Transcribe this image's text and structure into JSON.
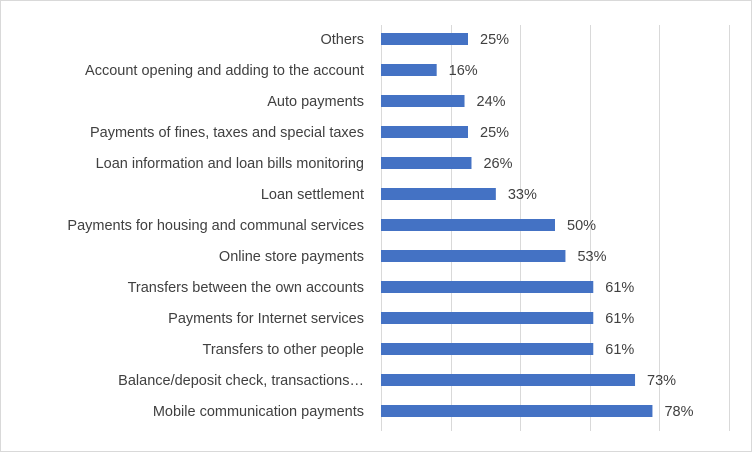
{
  "chart_data": {
    "type": "bar",
    "orientation": "horizontal",
    "categories": [
      "Others",
      "Account opening and adding to the account",
      "Auto payments",
      "Payments of fines, taxes and special taxes",
      "Loan information and loan bills monitoring",
      "Loan settlement",
      "Payments for housing and communal services",
      "Online store payments ",
      "Transfers between the own accounts",
      "Payments for Internet services",
      "Transfers to other people",
      "Balance/deposit check, transactions…",
      "Mobile communication payments "
    ],
    "values": [
      25,
      16,
      24,
      25,
      26,
      33,
      50,
      53,
      61,
      61,
      61,
      73,
      78
    ],
    "value_labels": [
      "25%",
      "16%",
      "24%",
      "25%",
      "26%",
      "33%",
      "50%",
      "53%",
      "61%",
      "61%",
      "61%",
      "73%",
      "78%"
    ],
    "title": "",
    "xlabel": "",
    "ylabel": "",
    "xlim": [
      0,
      100
    ],
    "grid": true,
    "legend": "none",
    "bar_color": "#4472c4"
  }
}
